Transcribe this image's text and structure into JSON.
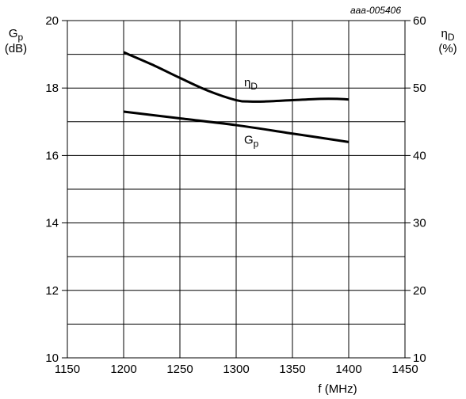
{
  "chart_data": {
    "type": "line",
    "reference_code": "aaa-005406",
    "x": {
      "label": "f (MHz)",
      "range": [
        1150,
        1450
      ],
      "ticks": [
        "1150",
        "1200",
        "1250",
        "1300",
        "1350",
        "1400",
        "1450"
      ],
      "tick_values": [
        1150,
        1200,
        1250,
        1300,
        1350,
        1400,
        1450
      ]
    },
    "y_left": {
      "label_main": "G",
      "label_sub": "p",
      "label_unit": "(dB)",
      "range": [
        10,
        20
      ],
      "ticks": [
        "10",
        "12",
        "14",
        "16",
        "18",
        "20"
      ],
      "tick_values": [
        10,
        12,
        14,
        16,
        18,
        20
      ]
    },
    "y_right": {
      "label_main": "η",
      "label_sub": "D",
      "label_unit": "(%)",
      "range": [
        10,
        60
      ],
      "ticks": [
        "10",
        "20",
        "30",
        "40",
        "50",
        "60"
      ],
      "tick_values": [
        10,
        20,
        30,
        40,
        50,
        60
      ]
    },
    "grid": {
      "x_step": 50,
      "y_left_step": 1
    },
    "series": [
      {
        "name_main": "η",
        "name_sub": "D",
        "axis": "right",
        "x": [
          1200,
          1225,
          1250,
          1275,
          1300,
          1312,
          1325,
          1350,
          1375,
          1390,
          1400
        ],
        "values": [
          55.3,
          53.5,
          51.5,
          49.6,
          48.2,
          48.0,
          48.0,
          48.2,
          48.4,
          48.4,
          48.3
        ]
      },
      {
        "name_main": "G",
        "name_sub": "p",
        "axis": "left",
        "x": [
          1200,
          1250,
          1300,
          1350,
          1400
        ],
        "values": [
          17.3,
          17.1,
          16.9,
          16.65,
          16.4
        ]
      }
    ],
    "curve_labels": [
      {
        "series": 0,
        "at_x": 1307,
        "at_y_left": 18.05
      },
      {
        "series": 1,
        "at_x": 1307,
        "at_y_left": 16.35
      }
    ]
  }
}
